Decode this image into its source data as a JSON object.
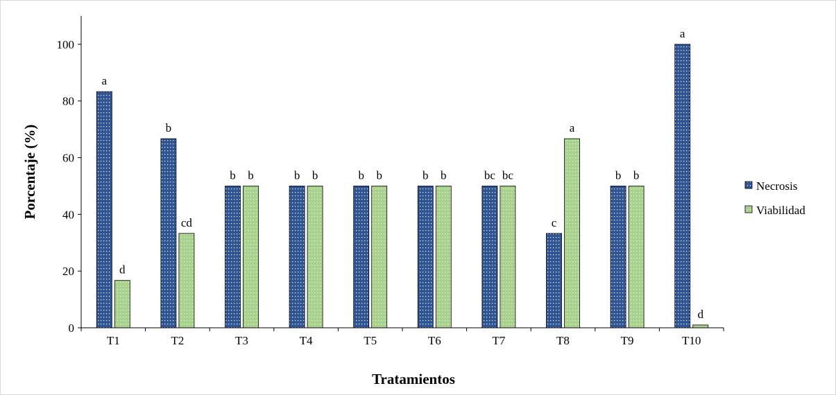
{
  "chart_data": {
    "type": "bar",
    "xlabel": "Tratamientos",
    "ylabel": "Porcentaje (%)",
    "ylim": [
      0,
      110
    ],
    "yticks": [
      0,
      20,
      40,
      60,
      80,
      100
    ],
    "categories": [
      "T1",
      "T2",
      "T3",
      "T4",
      "T5",
      "T6",
      "T7",
      "T8",
      "T9",
      "T10"
    ],
    "series": [
      {
        "name": "Necrosis",
        "color": "#2f5597",
        "values": [
          83.3,
          66.7,
          50,
          50,
          50,
          50,
          50,
          33.3,
          50,
          100
        ],
        "labels": [
          "a",
          "b",
          "b",
          "b",
          "b",
          "b",
          "bc",
          "c",
          "b",
          "a"
        ]
      },
      {
        "name": "Viabilidad",
        "color": "#a9d18e",
        "values": [
          16.7,
          33.3,
          50,
          50,
          50,
          50,
          50,
          66.7,
          50,
          1
        ],
        "labels": [
          "d",
          "cd",
          "b",
          "b",
          "b",
          "b",
          "bc",
          "a",
          "b",
          "d"
        ]
      }
    ],
    "legend_position": "right",
    "grid": false
  }
}
